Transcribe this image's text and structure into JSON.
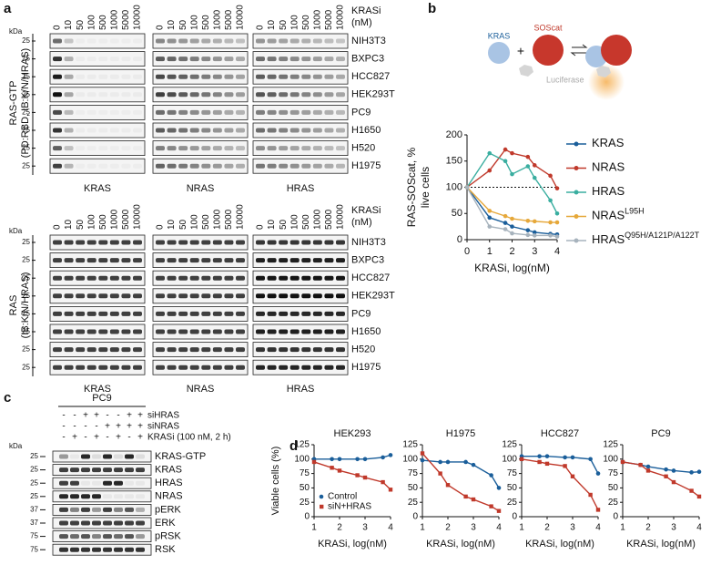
{
  "panel_a": {
    "label": "a",
    "blocks": [
      {
        "kda": "kDa",
        "concentration_title": [
          "KRASi",
          "(nM)"
        ],
        "concentrations": [
          0,
          10,
          50,
          100,
          500,
          1000,
          5000,
          10000
        ],
        "y_label": [
          "RAS-GTP",
          "(PD:RBD, IB:K/N/HRAS)"
        ],
        "molecular_weights": [
          25,
          25,
          25,
          25,
          25,
          25,
          25,
          25
        ],
        "cell_lines": [
          "NIH3T3",
          "BXPC3",
          "HCC827",
          "HEK293T",
          "PC9",
          "H1650",
          "H520",
          "H1975"
        ],
        "antibodies": [
          "KRAS",
          "NRAS",
          "HRAS"
        ]
      },
      {
        "kda": "kDa",
        "concentration_title": [
          "KRASi",
          "(nM)"
        ],
        "concentrations": [
          0,
          10,
          50,
          100,
          500,
          1000,
          5000,
          10000
        ],
        "y_label": [
          "RAS",
          "(IB:K/N/HRAS)"
        ],
        "molecular_weights": [
          25,
          25,
          25,
          25,
          25,
          25,
          25,
          25
        ],
        "cell_lines": [
          "NIH3T3",
          "BXPC3",
          "HCC827",
          "HEK293T",
          "PC9",
          "H1650",
          "H520",
          "H1975"
        ],
        "antibodies": [
          "KRAS",
          "NRAS",
          "HRAS"
        ]
      }
    ]
  },
  "panel_b": {
    "label": "b",
    "diagram": {
      "kras": "KRAS",
      "soscat": "SOScat",
      "plus": "+",
      "luciferase": "Luciferase"
    },
    "chart_data": {
      "type": "line",
      "y_label": [
        "RAS-SOScat, %",
        "live cells"
      ],
      "x_label": "KRASi, log(nM)",
      "x": [
        0,
        1,
        1.7,
        2,
        2.7,
        3,
        3.7,
        4
      ],
      "xlim": [
        0,
        4
      ],
      "xticks": [
        0,
        1,
        2,
        3,
        4
      ],
      "ylim": [
        0,
        200
      ],
      "yticks": [
        0,
        50,
        100,
        150,
        200
      ],
      "reference_line": 100,
      "legend": "right",
      "series": [
        {
          "name": "KRAS",
          "color": "#1a5e9a",
          "values": [
            100,
            42,
            32,
            25,
            18,
            14,
            11,
            10
          ]
        },
        {
          "name": "NRAS",
          "color": "#c0392b",
          "values": [
            100,
            132,
            172,
            165,
            158,
            142,
            122,
            98
          ]
        },
        {
          "name": "HRAS",
          "color": "#3aaea0",
          "values": [
            100,
            165,
            150,
            125,
            140,
            118,
            75,
            50
          ]
        },
        {
          "name": "NRAS",
          "name_sup": "L95H",
          "color": "#e6a83a",
          "values": [
            100,
            55,
            45,
            40,
            36,
            35,
            33,
            33
          ]
        },
        {
          "name": "HRAS",
          "name_sup": "Q95H/A121P/A122T",
          "color": "#a7b3bd",
          "values": [
            100,
            25,
            20,
            12,
            9,
            8,
            8,
            6
          ]
        }
      ]
    }
  },
  "panel_c": {
    "label": "c",
    "cell_line": "PC9",
    "kda": "kDa",
    "conditions": [
      {
        "label": "siHRAS",
        "signs": [
          "-",
          "-",
          "+",
          "+",
          "-",
          "-",
          "+",
          "+"
        ]
      },
      {
        "label": "siNRAS",
        "signs": [
          "-",
          "-",
          "-",
          "-",
          "+",
          "+",
          "+",
          "+"
        ]
      },
      {
        "label": "KRASi (100 nM, 2 h)",
        "signs": [
          "-",
          "+",
          "-",
          "+",
          "-",
          "+",
          "-",
          "+"
        ]
      }
    ],
    "blots": [
      {
        "label": "KRAS-GTP",
        "kda": 25
      },
      {
        "label": "KRAS",
        "kda": 25
      },
      {
        "label": "HRAS",
        "kda": 25
      },
      {
        "label": "NRAS",
        "kda": 25
      },
      {
        "label": "pERK",
        "kda": 37
      },
      {
        "label": "ERK",
        "kda": 37
      },
      {
        "label": "pRSK",
        "kda": 75
      },
      {
        "label": "RSK",
        "kda": 75
      }
    ]
  },
  "panel_d": {
    "label": "d",
    "chart_data": [
      {
        "type": "line",
        "title": "HEK293",
        "y_label": [
          "Viable cells (%)"
        ],
        "x_label": "KRASi, log(nM)",
        "x": [
          1,
          1.7,
          2,
          2.7,
          3,
          3.7,
          4
        ],
        "xlim": [
          1,
          4
        ],
        "xticks": [
          1,
          2,
          3,
          4
        ],
        "ylim": [
          0,
          125
        ],
        "yticks": [
          0,
          25,
          50,
          75,
          100,
          125
        ],
        "legend": "lower-left",
        "series": [
          {
            "name": "Control",
            "color": "#1a5e9a",
            "values": [
              100,
              100,
              100,
              100,
              100,
              103,
              107
            ]
          },
          {
            "name": "siN+HRAS",
            "color": "#c0392b",
            "values": [
              95,
              85,
              80,
              72,
              68,
              60,
              47
            ]
          }
        ]
      },
      {
        "type": "line",
        "title": "H1975",
        "x_label": "KRASi, log(nM)",
        "x": [
          1,
          1.7,
          2,
          2.7,
          3,
          3.7,
          4
        ],
        "xlim": [
          1,
          4
        ],
        "xticks": [
          1,
          2,
          3,
          4
        ],
        "ylim": [
          0,
          125
        ],
        "yticks": [
          0,
          25,
          50,
          75,
          100,
          125
        ],
        "series": [
          {
            "color": "#1a5e9a",
            "values": [
              98,
              95,
              95,
              95,
              90,
              72,
              50
            ]
          },
          {
            "color": "#c0392b",
            "values": [
              110,
              75,
              55,
              35,
              30,
              18,
              10
            ]
          }
        ]
      },
      {
        "type": "line",
        "title": "HCC827",
        "x_label": "KRASi, log(nM)",
        "x": [
          1,
          1.7,
          2,
          2.7,
          3,
          3.7,
          4
        ],
        "xlim": [
          1,
          4
        ],
        "xticks": [
          1,
          2,
          3,
          4
        ],
        "ylim": [
          0,
          125
        ],
        "yticks": [
          0,
          25,
          50,
          75,
          100,
          125
        ],
        "series": [
          {
            "color": "#1a5e9a",
            "values": [
              105,
              105,
              105,
              103,
              103,
              100,
              75
            ]
          },
          {
            "color": "#c0392b",
            "values": [
              100,
              95,
              92,
              88,
              70,
              38,
              12
            ]
          }
        ]
      },
      {
        "type": "line",
        "title": "PC9",
        "x_label": "KRASi, log(nM)",
        "x": [
          1,
          1.7,
          2,
          2.7,
          3,
          3.7,
          4
        ],
        "xlim": [
          1,
          4
        ],
        "xticks": [
          1,
          2,
          3,
          4
        ],
        "ylim": [
          0,
          125
        ],
        "yticks": [
          0,
          25,
          50,
          75,
          100,
          125
        ],
        "series": [
          {
            "color": "#1a5e9a",
            "values": [
              95,
              90,
              87,
              82,
              80,
              77,
              78
            ]
          },
          {
            "color": "#c0392b",
            "values": [
              95,
              90,
              80,
              70,
              60,
              45,
              35
            ]
          }
        ]
      }
    ]
  }
}
